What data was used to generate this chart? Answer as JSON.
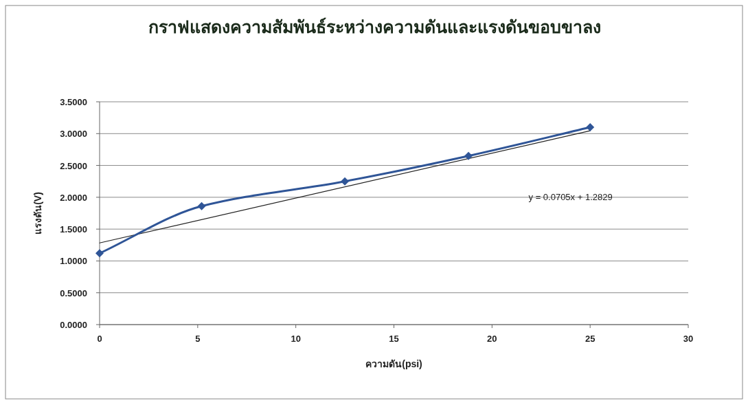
{
  "chart_data": {
    "type": "line",
    "title": "กราฟแสดงความสัมพันธ์ระหว่างความดันและแรงดันขอบขาลง",
    "xlabel": "ความดัน(psi)",
    "ylabel": "แรงดัน(V)",
    "x": [
      0,
      5.2,
      12.5,
      18.8,
      25
    ],
    "series": [
      {
        "color": "#2f5597",
        "values": [
          1.12,
          1.86,
          2.25,
          2.65,
          3.1
        ],
        "marker": "diamond"
      },
      {
        "type": "line",
        "x": [
          0,
          25
        ],
        "values": [
          1.2829,
          3.0454
        ],
        "color": "#222222",
        "marker": "none"
      }
    ],
    "annotations": [
      "y = 0.0705x + 1.2829"
    ],
    "xlim": [
      0,
      30
    ],
    "xticks": [
      0,
      5,
      10,
      15,
      20,
      25,
      30
    ],
    "ylim": [
      0,
      3.5
    ],
    "yticks": [
      {
        "value": 0,
        "label": "0.0000"
      },
      {
        "value": 0.5,
        "label": "0.5000"
      },
      {
        "value": 1,
        "label": "1.0000"
      },
      {
        "value": 1.5,
        "label": "1.5000"
      },
      {
        "value": 2,
        "label": "2.0000"
      },
      {
        "value": 2.5,
        "label": "2.5000"
      },
      {
        "value": 3,
        "label": "3.0000"
      },
      {
        "value": 3.5,
        "label": "3.5000"
      }
    ],
    "grid": "y"
  }
}
